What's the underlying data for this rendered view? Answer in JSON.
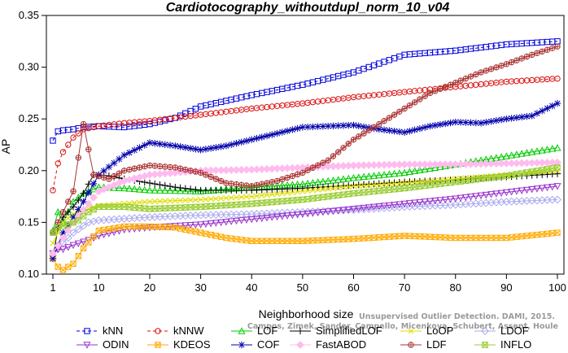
{
  "chart_data": {
    "type": "line",
    "title": "Cardiotocography_withoutdupl_norm_10_v04",
    "xlabel": "Neighborhood size",
    "ylabel": "AP",
    "xlim": [
      1,
      100
    ],
    "ylim": [
      0.1,
      0.35
    ],
    "xticks": [
      "1",
      "10",
      "20",
      "30",
      "40",
      "50",
      "60",
      "70",
      "80",
      "90",
      "100"
    ],
    "yticks": [
      "0.10",
      "0.15",
      "0.20",
      "0.25",
      "0.30",
      "0.35"
    ],
    "grid": false,
    "legend_position": "bottom",
    "watermark": [
      "Unsupervised Outlier Detection. DAMI, 2015.",
      "Campos, Zimek, Sander, Campello, Micenkova, Schubert, Assent, Houle"
    ],
    "series": [
      {
        "name": "kNN",
        "color": "#0000dd",
        "marker": "square",
        "dash": "4,3",
        "points": [
          [
            1,
            0.229
          ],
          [
            2,
            0.238
          ],
          [
            3,
            0.239
          ],
          [
            5,
            0.24
          ],
          [
            7,
            0.242
          ],
          [
            10,
            0.243
          ],
          [
            15,
            0.242
          ],
          [
            20,
            0.245
          ],
          [
            25,
            0.251
          ],
          [
            30,
            0.262
          ],
          [
            40,
            0.273
          ],
          [
            50,
            0.283
          ],
          [
            60,
            0.295
          ],
          [
            70,
            0.312
          ],
          [
            80,
            0.316
          ],
          [
            90,
            0.322
          ],
          [
            100,
            0.325
          ]
        ]
      },
      {
        "name": "kNNW",
        "color": "#dd1111",
        "marker": "circle",
        "dash": "4,3",
        "points": [
          [
            1,
            0.181
          ],
          [
            2,
            0.207
          ],
          [
            3,
            0.218
          ],
          [
            5,
            0.232
          ],
          [
            7,
            0.24
          ],
          [
            10,
            0.243
          ],
          [
            15,
            0.246
          ],
          [
            20,
            0.248
          ],
          [
            30,
            0.254
          ],
          [
            40,
            0.26
          ],
          [
            50,
            0.265
          ],
          [
            60,
            0.271
          ],
          [
            70,
            0.276
          ],
          [
            80,
            0.281
          ],
          [
            90,
            0.286
          ],
          [
            100,
            0.289
          ]
        ]
      },
      {
        "name": "LOF",
        "color": "#00cc00",
        "marker": "triangle",
        "dash": "",
        "points": [
          [
            1,
            0.142
          ],
          [
            2,
            0.16
          ],
          [
            3,
            0.15
          ],
          [
            5,
            0.17
          ],
          [
            7,
            0.178
          ],
          [
            10,
            0.184
          ],
          [
            15,
            0.183
          ],
          [
            20,
            0.181
          ],
          [
            30,
            0.18
          ],
          [
            40,
            0.184
          ],
          [
            50,
            0.187
          ],
          [
            60,
            0.193
          ],
          [
            70,
            0.198
          ],
          [
            80,
            0.206
          ],
          [
            90,
            0.214
          ],
          [
            100,
            0.222
          ]
        ]
      },
      {
        "name": "SimplifiedLOF",
        "color": "#000000",
        "marker": "plus",
        "dash": "",
        "points": [
          [
            1,
            0.115
          ],
          [
            2,
            0.145
          ],
          [
            3,
            0.155
          ],
          [
            5,
            0.165
          ],
          [
            7,
            0.178
          ],
          [
            9,
            0.196
          ],
          [
            12,
            0.195
          ],
          [
            15,
            0.192
          ],
          [
            20,
            0.188
          ],
          [
            25,
            0.184
          ],
          [
            30,
            0.181
          ],
          [
            40,
            0.181
          ],
          [
            50,
            0.183
          ],
          [
            60,
            0.186
          ],
          [
            70,
            0.189
          ],
          [
            80,
            0.191
          ],
          [
            90,
            0.194
          ],
          [
            100,
            0.197
          ]
        ]
      },
      {
        "name": "LoOP",
        "color": "#dddd00",
        "marker": "x",
        "dash": "",
        "points": [
          [
            1,
            0.13
          ],
          [
            3,
            0.15
          ],
          [
            5,
            0.158
          ],
          [
            8,
            0.163
          ],
          [
            10,
            0.166
          ],
          [
            20,
            0.17
          ],
          [
            30,
            0.172
          ],
          [
            40,
            0.175
          ],
          [
            50,
            0.18
          ],
          [
            60,
            0.185
          ],
          [
            70,
            0.188
          ],
          [
            80,
            0.192
          ],
          [
            90,
            0.196
          ],
          [
            100,
            0.2
          ]
        ]
      },
      {
        "name": "LDOF",
        "color": "#aaaaee",
        "marker": "diamond",
        "dash": "",
        "points": [
          [
            1,
            0.118
          ],
          [
            3,
            0.13
          ],
          [
            5,
            0.14
          ],
          [
            8,
            0.15
          ],
          [
            10,
            0.152
          ],
          [
            20,
            0.155
          ],
          [
            30,
            0.157
          ],
          [
            40,
            0.158
          ],
          [
            50,
            0.16
          ],
          [
            60,
            0.162
          ],
          [
            70,
            0.165
          ],
          [
            80,
            0.167
          ],
          [
            90,
            0.17
          ],
          [
            100,
            0.172
          ]
        ]
      },
      {
        "name": "ODIN",
        "color": "#9933cc",
        "marker": "triangle-down",
        "dash": "",
        "points": [
          [
            1,
            0.12
          ],
          [
            2,
            0.124
          ],
          [
            3,
            0.124
          ],
          [
            5,
            0.128
          ],
          [
            8,
            0.133
          ],
          [
            10,
            0.137
          ],
          [
            15,
            0.143
          ],
          [
            20,
            0.145
          ],
          [
            30,
            0.148
          ],
          [
            40,
            0.153
          ],
          [
            50,
            0.158
          ],
          [
            60,
            0.163
          ],
          [
            70,
            0.168
          ],
          [
            80,
            0.173
          ],
          [
            90,
            0.179
          ],
          [
            100,
            0.185
          ]
        ]
      },
      {
        "name": "KDEOS",
        "color": "#ffaa00",
        "marker": "box-x",
        "dash": "",
        "points": [
          [
            1,
            0.115
          ],
          [
            2,
            0.107
          ],
          [
            3,
            0.104
          ],
          [
            5,
            0.11
          ],
          [
            7,
            0.125
          ],
          [
            10,
            0.142
          ],
          [
            15,
            0.146
          ],
          [
            20,
            0.146
          ],
          [
            25,
            0.145
          ],
          [
            30,
            0.14
          ],
          [
            35,
            0.135
          ],
          [
            40,
            0.132
          ],
          [
            50,
            0.132
          ],
          [
            60,
            0.134
          ],
          [
            70,
            0.137
          ],
          [
            80,
            0.135
          ],
          [
            90,
            0.135
          ],
          [
            100,
            0.14
          ]
        ]
      },
      {
        "name": "COF",
        "color": "#0000aa",
        "marker": "star",
        "dash": "",
        "points": [
          [
            1,
            0.115
          ],
          [
            2,
            0.128
          ],
          [
            3,
            0.14
          ],
          [
            5,
            0.155
          ],
          [
            7,
            0.17
          ],
          [
            10,
            0.196
          ],
          [
            15,
            0.215
          ],
          [
            20,
            0.227
          ],
          [
            25,
            0.224
          ],
          [
            30,
            0.22
          ],
          [
            35,
            0.224
          ],
          [
            40,
            0.23
          ],
          [
            45,
            0.236
          ],
          [
            50,
            0.242
          ],
          [
            55,
            0.243
          ],
          [
            60,
            0.244
          ],
          [
            65,
            0.24
          ],
          [
            70,
            0.237
          ],
          [
            75,
            0.243
          ],
          [
            80,
            0.247
          ],
          [
            85,
            0.246
          ],
          [
            90,
            0.25
          ],
          [
            95,
            0.253
          ],
          [
            100,
            0.265
          ]
        ]
      },
      {
        "name": "FastABOD",
        "color": "#ffbbee",
        "marker": "diamond-filled",
        "dash": "",
        "points": [
          [
            1,
            0.12
          ],
          [
            3,
            0.135
          ],
          [
            5,
            0.15
          ],
          [
            8,
            0.168
          ],
          [
            10,
            0.18
          ],
          [
            15,
            0.19
          ],
          [
            20,
            0.196
          ],
          [
            30,
            0.2
          ],
          [
            40,
            0.201
          ],
          [
            50,
            0.203
          ],
          [
            60,
            0.205
          ],
          [
            70,
            0.206
          ],
          [
            80,
            0.206
          ],
          [
            90,
            0.207
          ],
          [
            100,
            0.208
          ]
        ]
      },
      {
        "name": "LDF",
        "color": "#aa3333",
        "marker": "circle-plus",
        "dash": "",
        "points": [
          [
            1,
            0.14
          ],
          [
            2,
            0.15
          ],
          [
            3,
            0.16
          ],
          [
            5,
            0.18
          ],
          [
            7,
            0.245
          ],
          [
            9,
            0.196
          ],
          [
            12,
            0.192
          ],
          [
            15,
            0.2
          ],
          [
            20,
            0.205
          ],
          [
            25,
            0.203
          ],
          [
            30,
            0.198
          ],
          [
            35,
            0.188
          ],
          [
            40,
            0.185
          ],
          [
            45,
            0.19
          ],
          [
            50,
            0.198
          ],
          [
            55,
            0.21
          ],
          [
            60,
            0.23
          ],
          [
            65,
            0.245
          ],
          [
            70,
            0.26
          ],
          [
            75,
            0.275
          ],
          [
            80,
            0.285
          ],
          [
            85,
            0.295
          ],
          [
            90,
            0.303
          ],
          [
            95,
            0.312
          ],
          [
            100,
            0.32
          ]
        ]
      },
      {
        "name": "INFLO",
        "color": "#99cc33",
        "marker": "hourglass",
        "dash": "",
        "points": [
          [
            1,
            0.14
          ],
          [
            2,
            0.145
          ],
          [
            4,
            0.148
          ],
          [
            6,
            0.152
          ],
          [
            8,
            0.16
          ],
          [
            10,
            0.165
          ],
          [
            15,
            0.165
          ],
          [
            20,
            0.163
          ],
          [
            30,
            0.165
          ],
          [
            40,
            0.168
          ],
          [
            50,
            0.172
          ],
          [
            60,
            0.178
          ],
          [
            70,
            0.183
          ],
          [
            80,
            0.189
          ],
          [
            90,
            0.195
          ],
          [
            100,
            0.203
          ]
        ]
      }
    ]
  }
}
